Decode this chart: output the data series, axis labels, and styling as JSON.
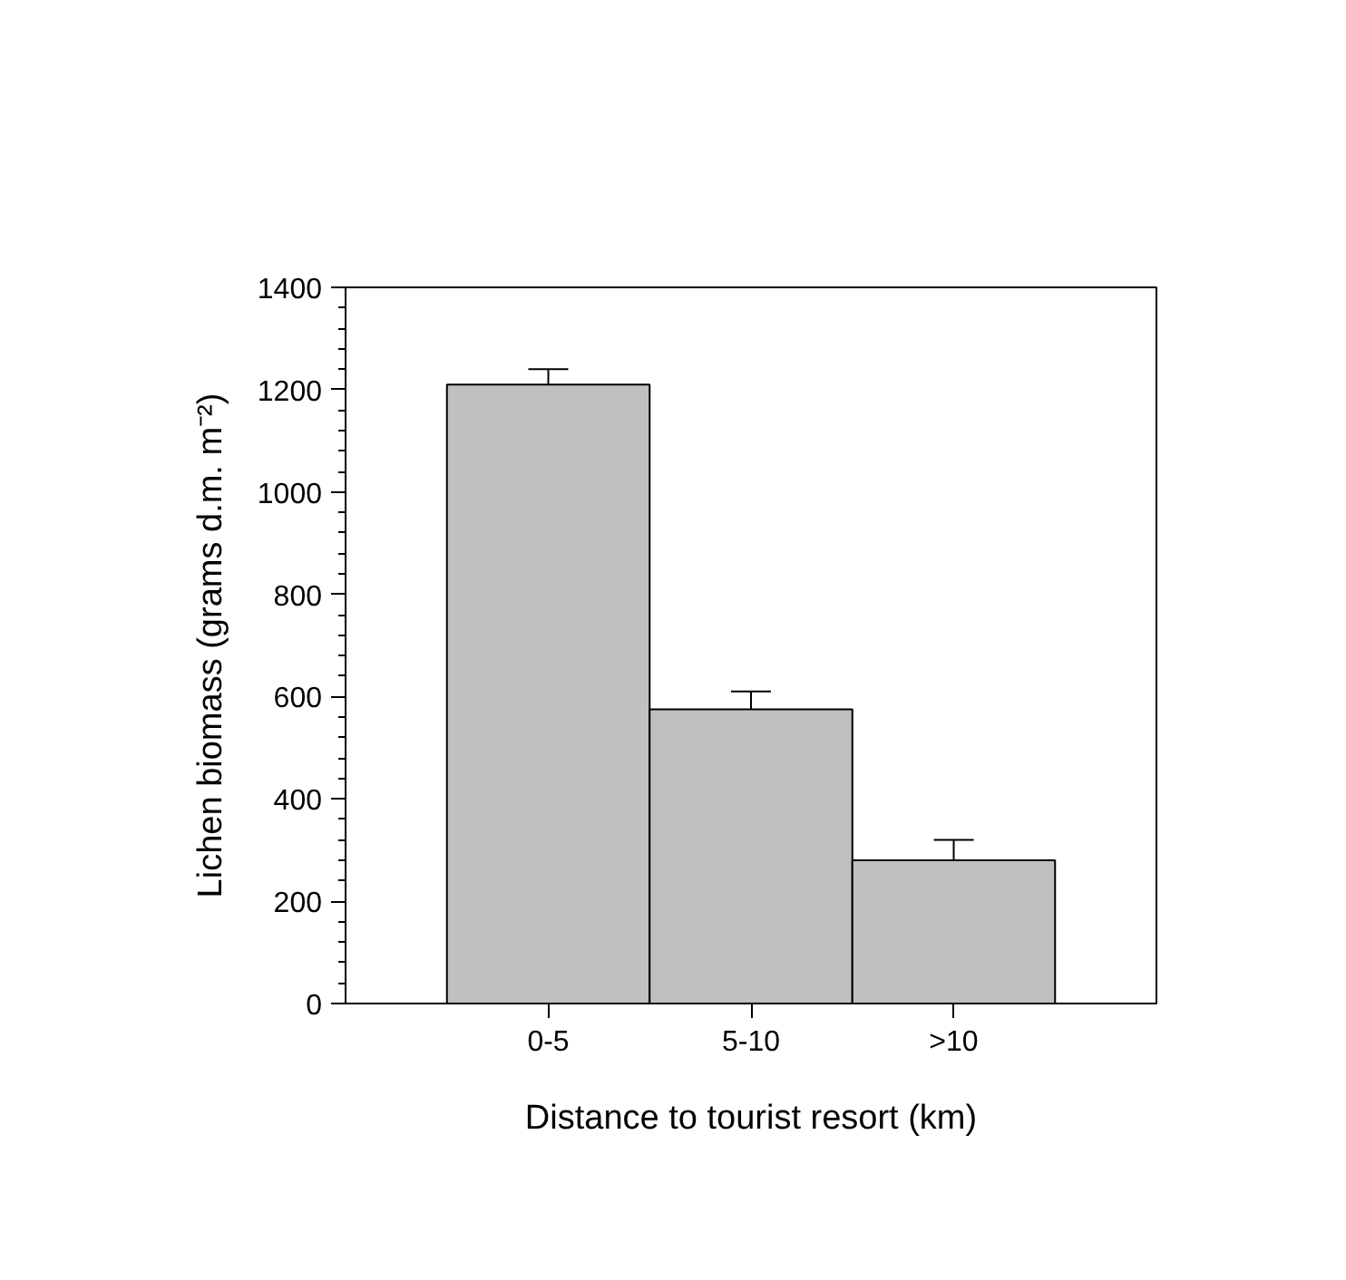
{
  "chart_data": {
    "type": "bar",
    "xlabel": "Distance to tourist resort (km)",
    "ylabel": "Lichen biomass (grams d.m. m⁻²)",
    "categories": [
      "0-5",
      "5-10",
      ">10"
    ],
    "values": [
      1210,
      575,
      280
    ],
    "errors": [
      30,
      35,
      40
    ],
    "color": "#c0c0c0",
    "ylim": [
      0,
      1400
    ],
    "yticks": [
      0,
      200,
      400,
      600,
      800,
      1000,
      1200,
      1400
    ],
    "grid": false
  }
}
